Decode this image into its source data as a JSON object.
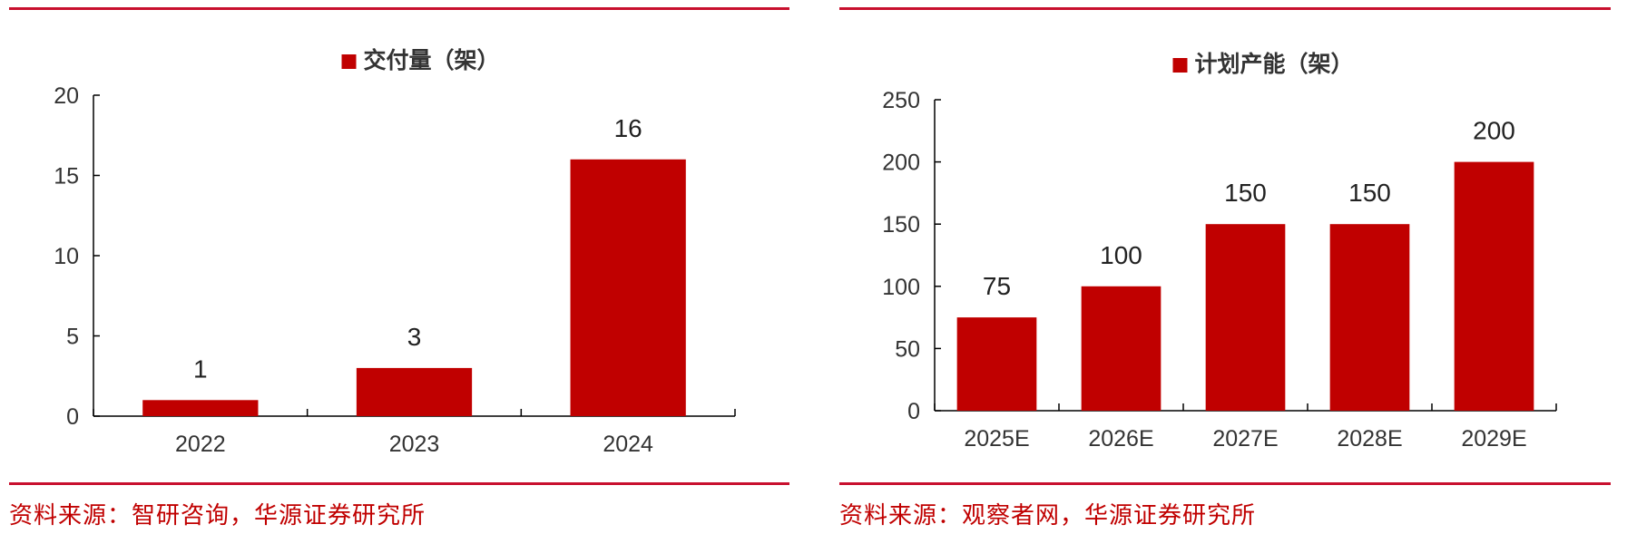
{
  "charts": [
    {
      "id": "left",
      "source": "资料来源：智研咨询，华源证券研究所",
      "chart_data": {
        "type": "bar",
        "legend": "交付量（架）",
        "legend_position": "top-center",
        "categories": [
          "2022",
          "2023",
          "2024"
        ],
        "values": [
          1,
          3,
          16
        ],
        "data_labels": [
          "1",
          "3",
          "16"
        ],
        "y_ticks": [
          "0",
          "5",
          "10",
          "15",
          "20"
        ],
        "ylim": [
          0,
          20
        ],
        "grid": false,
        "bar_color": "#c00000"
      }
    },
    {
      "id": "right",
      "source": "资料来源：观察者网，华源证券研究所",
      "chart_data": {
        "type": "bar",
        "legend": "计划产能（架）",
        "legend_position": "top-center",
        "categories": [
          "2025E",
          "2026E",
          "2027E",
          "2028E",
          "2029E"
        ],
        "values": [
          75,
          100,
          150,
          150,
          200
        ],
        "data_labels": [
          "75",
          "100",
          "150",
          "150",
          "200"
        ],
        "y_ticks": [
          "0",
          "50",
          "100",
          "150",
          "200",
          "250"
        ],
        "ylim": [
          0,
          250
        ],
        "grid": false,
        "bar_color": "#c00000"
      }
    }
  ],
  "colors": {
    "accent": "#c8102e",
    "bar": "#c00000",
    "source_text": "#c00000"
  }
}
